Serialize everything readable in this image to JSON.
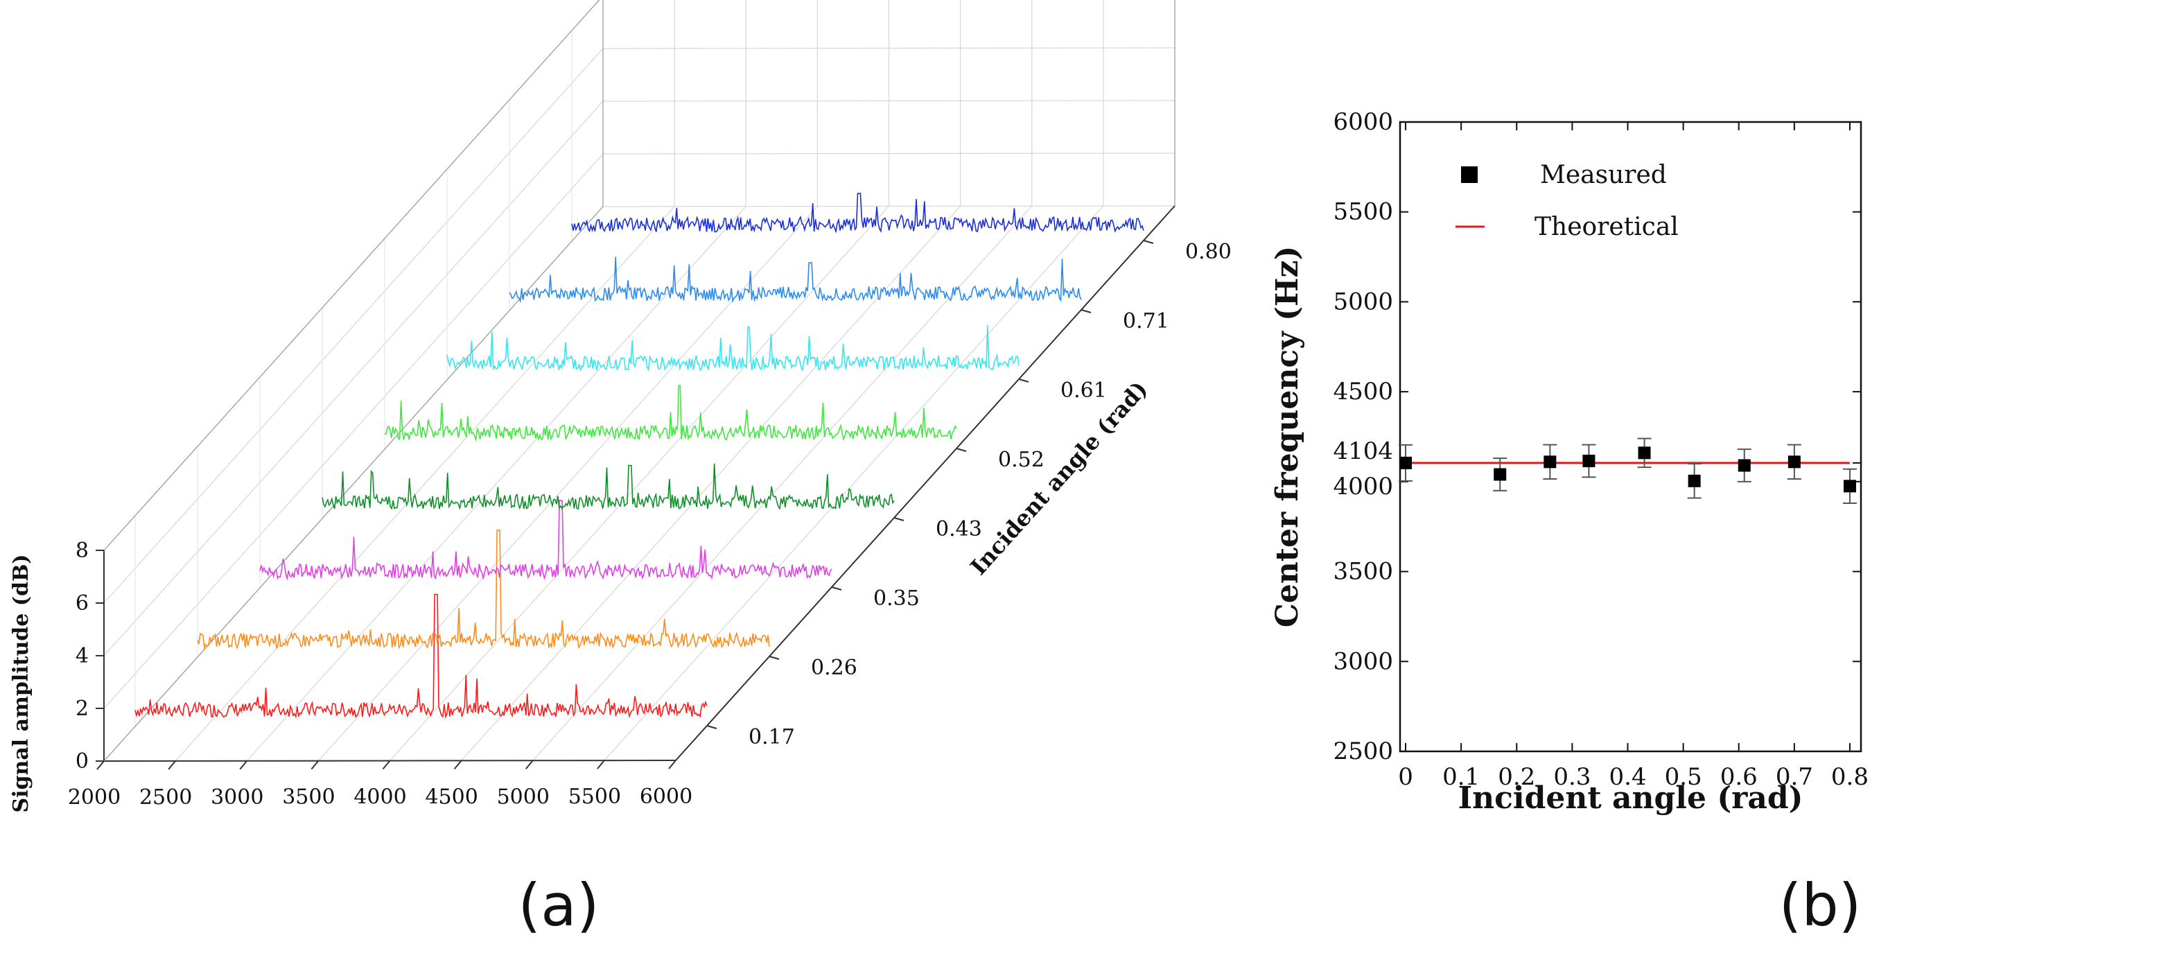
{
  "chart_data": [
    {
      "panel": "a",
      "type": "line",
      "title": "",
      "xlabel": "",
      "ylabel": "Signal amplitude (dB)",
      "zlabel": "Incident angle (rad)",
      "x_ticks": [
        "2000",
        "2500",
        "3000",
        "3500",
        "4000",
        "4500",
        "5000",
        "5500",
        "6000"
      ],
      "y_ticks": [
        "0",
        "2",
        "4",
        "6",
        "8"
      ],
      "xlim": [
        2000,
        6000
      ],
      "ylim": [
        0,
        8
      ],
      "series": [
        {
          "name": "0.17",
          "color": "#ff1a1a",
          "peak_x": 4104,
          "peak_y": 5.0
        },
        {
          "name": "0.26",
          "color": "#ff8c1a",
          "peak_x": 4104,
          "peak_y": 4.8
        },
        {
          "name": "0.35",
          "color": "#e040e6",
          "peak_x": 4104,
          "peak_y": 3.3
        },
        {
          "name": "0.43",
          "color": "#0e8f2a",
          "peak_x": 4150,
          "peak_y": 2.0
        },
        {
          "name": "0.52",
          "color": "#3ee83e",
          "peak_x": 4060,
          "peak_y": 2.4
        },
        {
          "name": "0.61",
          "color": "#33e6f2",
          "peak_x": 4110,
          "peak_y": 2.0
        },
        {
          "name": "0.71",
          "color": "#2a8bf2",
          "peak_x": 4104,
          "peak_y": 1.8
        },
        {
          "name": "0.80",
          "color": "#1a2ed6",
          "peak_x": 4010,
          "peak_y": 1.8
        }
      ]
    },
    {
      "panel": "b",
      "type": "scatter",
      "title": "",
      "xlabel": "Incident angle (rad)",
      "ylabel": "Center frequency (Hz)",
      "xlim": [
        -0.01,
        0.82
      ],
      "ylim": [
        2500,
        6000
      ],
      "x_ticks": [
        "0",
        "0.1",
        "0.2",
        "0.3",
        "0.4",
        "0.5",
        "0.6",
        "0.7",
        "0.8"
      ],
      "y_ticks": [
        "2500",
        "3000",
        "3500",
        "4000",
        "4104",
        "4500",
        "5000",
        "5500",
        "6000"
      ],
      "legend": {
        "measured": "Measured",
        "theoretical": "Theoretical",
        "placement": "top-left"
      },
      "series": [
        {
          "name": "Measured",
          "x": [
            0,
            0.17,
            0.26,
            0.33,
            0.43,
            0.52,
            0.61,
            0.7,
            0.8
          ],
          "y": [
            4104,
            4040,
            4110,
            4115,
            4160,
            4004,
            4090,
            4110,
            3975
          ],
          "err": [
            100,
            90,
            95,
            90,
            80,
            95,
            90,
            95,
            95
          ]
        },
        {
          "name": "Theoretical",
          "x": [
            0,
            0.8
          ],
          "y": [
            4104,
            4104
          ]
        }
      ]
    }
  ],
  "captions": {
    "a": "(a)",
    "b": "(b)"
  },
  "colors": {
    "theoretical": "#e31a1a",
    "measured": "#000000",
    "frame": "#333333"
  }
}
